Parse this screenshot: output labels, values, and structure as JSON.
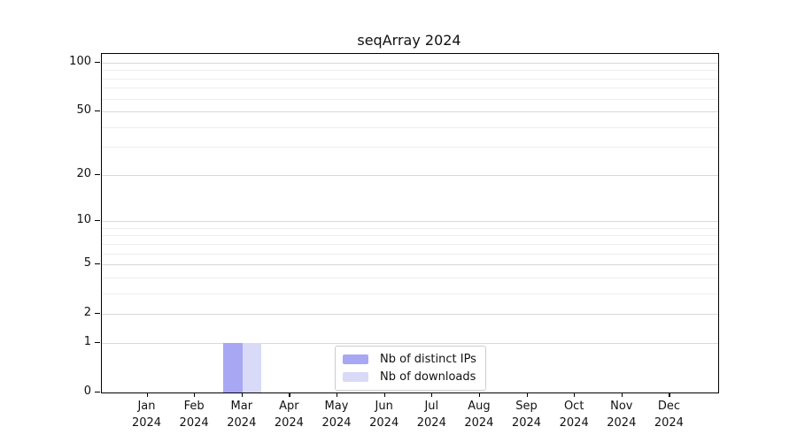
{
  "chart_data": {
    "type": "bar",
    "title": "seqArray 2024",
    "categories": [
      "Jan",
      "Feb",
      "Mar",
      "Apr",
      "May",
      "Jun",
      "Jul",
      "Aug",
      "Sep",
      "Oct",
      "Nov",
      "Dec"
    ],
    "category_year": "2024",
    "series": [
      {
        "name": "Nb of distinct IPs",
        "color": "#a7a7f3",
        "values": [
          0,
          0,
          1,
          0,
          0,
          0,
          0,
          0,
          0,
          0,
          0,
          0
        ]
      },
      {
        "name": "Nb of downloads",
        "color": "#d9d9f8",
        "values": [
          0,
          0,
          1,
          0,
          0,
          0,
          0,
          0,
          0,
          0,
          0,
          0
        ]
      }
    ],
    "xlabel": "",
    "ylabel": "",
    "y_scale": "log1p",
    "ylim": [
      0,
      113
    ],
    "y_major_ticks": [
      0,
      1,
      2,
      5,
      10,
      20,
      50,
      100
    ],
    "y_minor_ticks": [
      3,
      4,
      6,
      7,
      8,
      9,
      30,
      40,
      60,
      70,
      80,
      90
    ],
    "grid": "horizontal",
    "legend_position": "lower center"
  },
  "style_colors": {
    "major_grid": "#d8d8d8",
    "minor_grid": "#ededed",
    "axis": "#000000",
    "text": "#111111",
    "background": "#ffffff"
  }
}
